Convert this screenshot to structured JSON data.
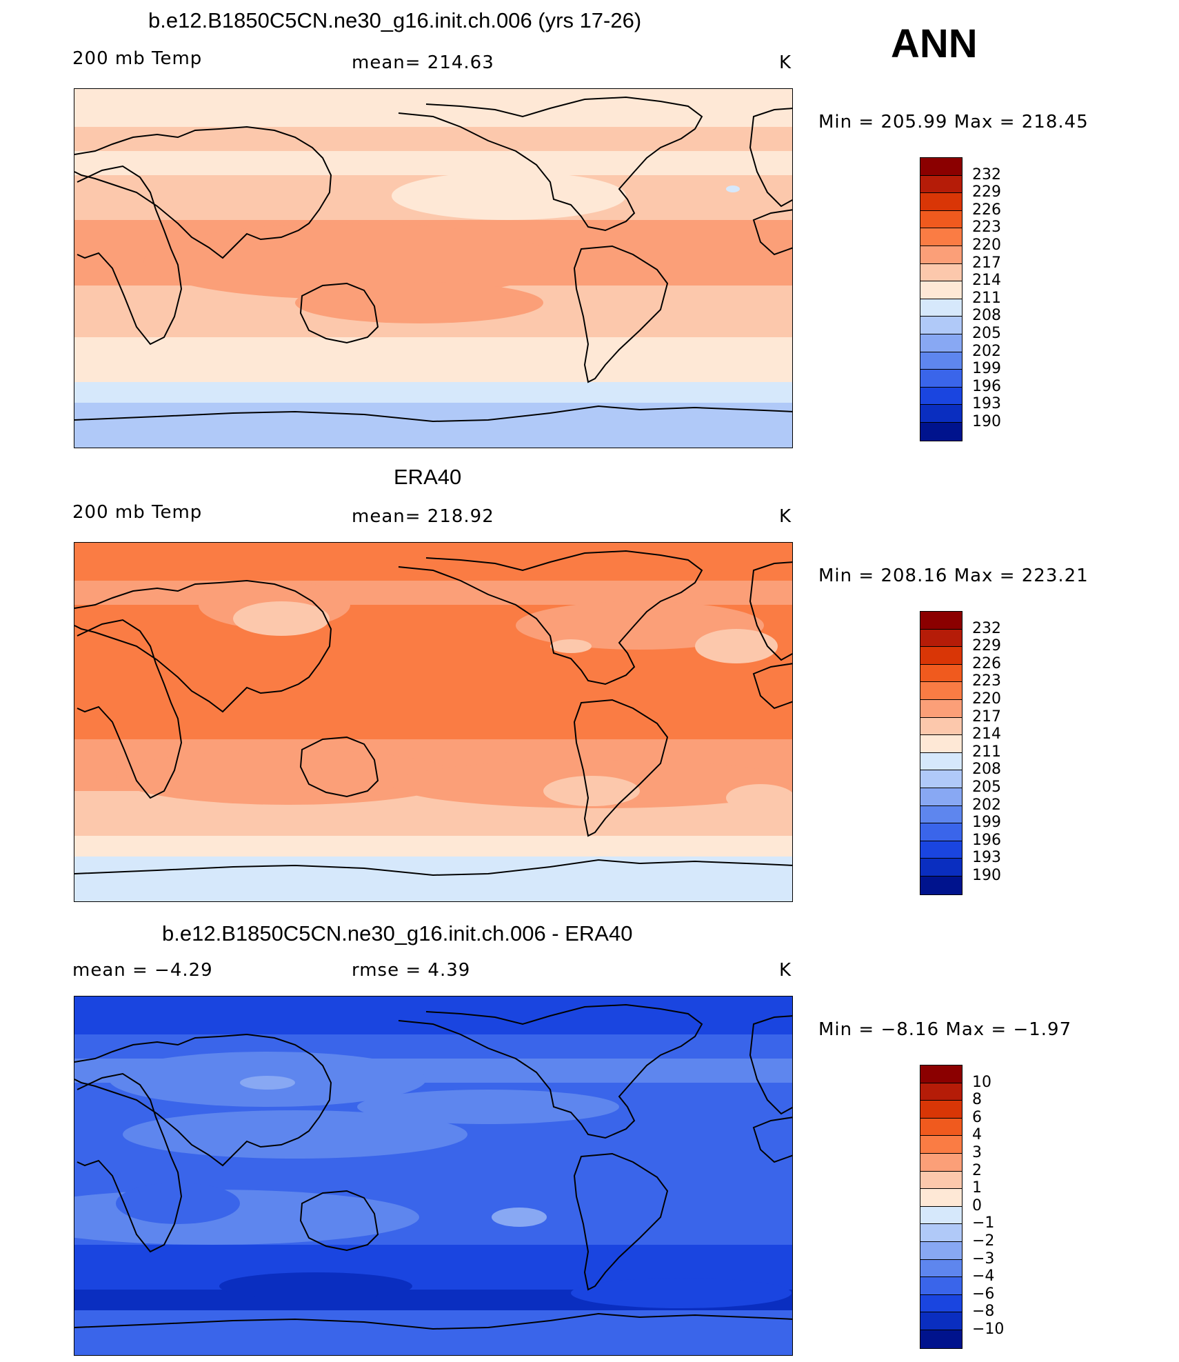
{
  "season": "ANN",
  "panels": [
    {
      "title": "b.e12.B1850C5CN.ne30_g16.init.ch.006 (yrs 17-26)",
      "left_label": "200 mb Temp",
      "center_label": "mean=  214.63",
      "units": "K",
      "minmax": "Min  =  205.99  Max  =  218.45",
      "colorbar_labels": [
        "232",
        "229",
        "226",
        "223",
        "220",
        "217",
        "214",
        "211",
        "208",
        "205",
        "202",
        "199",
        "196",
        "193",
        "190"
      ]
    },
    {
      "title": "ERA40",
      "left_label": "200 mb Temp",
      "center_label": "mean=  218.92",
      "units": "K",
      "minmax": "Min  =  208.16  Max  =  223.21",
      "colorbar_labels": [
        "232",
        "229",
        "226",
        "223",
        "220",
        "217",
        "214",
        "211",
        "208",
        "205",
        "202",
        "199",
        "196",
        "193",
        "190"
      ]
    },
    {
      "title": "b.e12.B1850C5CN.ne30_g16.init.ch.006 - ERA40",
      "left_label": "mean  =   −4.29",
      "center_label": "rmse  =     4.39",
      "units": "K",
      "minmax": "Min  =   −8.16  Max  =   −1.97",
      "colorbar_labels": [
        "10",
        "8",
        "6",
        "4",
        "3",
        "2",
        "1",
        "0",
        "−1",
        "−2",
        "−3",
        "−4",
        "−6",
        "−8",
        "−10"
      ]
    }
  ],
  "colors": {
    "colorbar": [
      "#8b0000",
      "#b51c08",
      "#d93606",
      "#f05a1e",
      "#fa7c44",
      "#fb9f78",
      "#fcc8ac",
      "#fee8d6",
      "#d6e8fb",
      "#b0c9f8",
      "#88a8f3",
      "#5e86ee",
      "#3a65ea",
      "#1a45e0",
      "#0a2ec0",
      "#00138d"
    ],
    "model_zones": [
      "#fee8d6",
      "#fcc8ac",
      "#fee8d6",
      "#fcc8ac",
      "#fb9f78",
      "#fcc8ac",
      "#fee8d6",
      "#d6e8fb",
      "#b0c9f8"
    ],
    "obs_zones": [
      "#fa7c44",
      "#fb9f78",
      "#fa7c44",
      "#fa7c44",
      "#fa7c44",
      "#fb9f78",
      "#fcc8ac",
      "#fee8d6",
      "#d6e8fb"
    ],
    "diff_zones": [
      "#1a45e0",
      "#3a65ea",
      "#5e86ee",
      "#3a65ea",
      "#3a65ea",
      "#3a65ea",
      "#1a45e0",
      "#0a2ec0",
      "#3a65ea"
    ]
  }
}
